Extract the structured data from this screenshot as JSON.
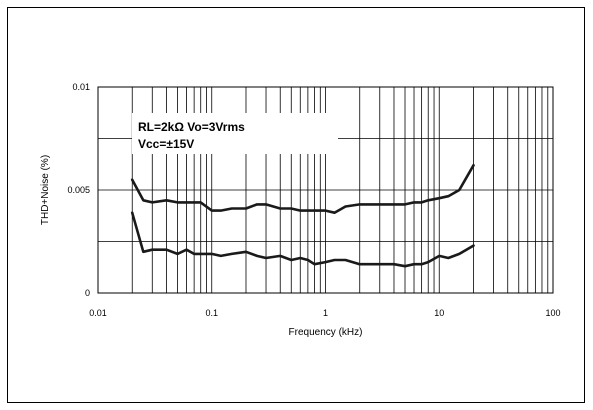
{
  "chart_data": {
    "type": "line",
    "title": "",
    "xlabel": "Frequency (kHz)",
    "ylabel": "THD+Noise (%)",
    "xscale": "log",
    "xlim": [
      0.01,
      100
    ],
    "ylim": [
      0,
      0.01
    ],
    "x_ticks": [
      {
        "value": 0.01,
        "label": "0.01"
      },
      {
        "value": 0.1,
        "label": "0.1"
      },
      {
        "value": 1,
        "label": "1"
      },
      {
        "value": 10,
        "label": "10"
      },
      {
        "value": 100,
        "label": "100"
      }
    ],
    "y_ticks": [
      {
        "value": 0,
        "label": "0"
      },
      {
        "value": 0.005,
        "label": "0.005"
      },
      {
        "value": 0.01,
        "label": "0.01"
      }
    ],
    "y_gridlines": [
      0.0025,
      0.005,
      0.0075
    ],
    "grid": true,
    "annotations": [
      "RL=2kΩ  Vo=3Vrms",
      "Vcc=±15V"
    ],
    "series": [
      {
        "x": [
          0.02,
          0.025,
          0.03,
          0.04,
          0.05,
          0.06,
          0.07,
          0.08,
          0.1,
          0.12,
          0.15,
          0.2,
          0.25,
          0.3,
          0.4,
          0.5,
          0.6,
          0.7,
          0.8,
          1,
          1.2,
          1.5,
          2,
          2.5,
          3,
          4,
          5,
          6,
          7,
          8,
          10,
          12,
          15,
          20
        ],
        "values": [
          0.0055,
          0.0045,
          0.0044,
          0.0045,
          0.0044,
          0.0044,
          0.0044,
          0.0044,
          0.004,
          0.004,
          0.0041,
          0.0041,
          0.0043,
          0.0043,
          0.0041,
          0.0041,
          0.004,
          0.004,
          0.004,
          0.004,
          0.0039,
          0.0042,
          0.0043,
          0.0043,
          0.0043,
          0.0043,
          0.0043,
          0.0044,
          0.0044,
          0.0045,
          0.0046,
          0.0047,
          0.005,
          0.0062
        ]
      },
      {
        "x": [
          0.02,
          0.025,
          0.03,
          0.04,
          0.05,
          0.06,
          0.07,
          0.08,
          0.1,
          0.12,
          0.15,
          0.2,
          0.25,
          0.3,
          0.4,
          0.5,
          0.6,
          0.7,
          0.8,
          1,
          1.2,
          1.5,
          2,
          2.5,
          3,
          4,
          5,
          6,
          7,
          8,
          10,
          12,
          15,
          20
        ],
        "values": [
          0.0039,
          0.002,
          0.0021,
          0.0021,
          0.0019,
          0.0021,
          0.0019,
          0.0019,
          0.0019,
          0.0018,
          0.0019,
          0.002,
          0.0018,
          0.0017,
          0.0018,
          0.0016,
          0.0017,
          0.0016,
          0.0014,
          0.0015,
          0.0016,
          0.0016,
          0.0014,
          0.0014,
          0.0014,
          0.0014,
          0.0013,
          0.0014,
          0.0014,
          0.0015,
          0.0018,
          0.0017,
          0.0019,
          0.0023
        ]
      }
    ]
  }
}
